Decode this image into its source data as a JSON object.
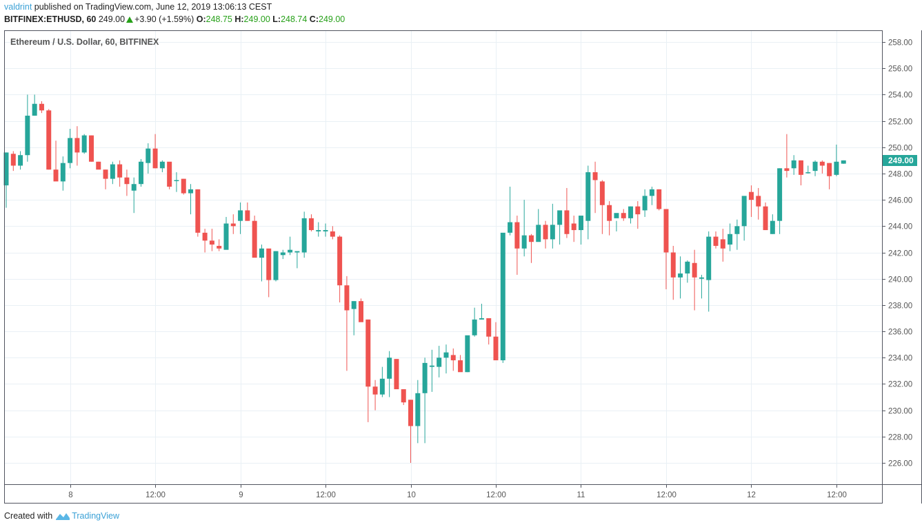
{
  "header": {
    "user": "valdrint",
    "published_text": "published on TradingView.com, June 12, 2019 13:06:13 CEST",
    "symbol": "BITFINEX:ETHUSD, 60",
    "last": "249.00",
    "change": "+3.90 (+1.59%)",
    "o_label": "O:",
    "o": "248.75",
    "h_label": "H:",
    "h": "249.00",
    "l_label": "L:",
    "l": "248.74",
    "c_label": "C:",
    "c": "249.00"
  },
  "footer": {
    "created_with": "Created with",
    "brand": "TradingView"
  },
  "colors": {
    "up": "#26a69a",
    "down": "#ef5350",
    "grid": "#e9f0f5",
    "axis": "#50535e",
    "price_label_bg": "#26a69a"
  },
  "chart_data": {
    "type": "candlestick",
    "title": "Ethereum / U.S. Dollar, 60, BITFINEX",
    "xlabel": "",
    "ylabel": "",
    "ylim": [
      224.6,
      259.0
    ],
    "y_ticks": [
      "258.00",
      "256.00",
      "254.00",
      "252.00",
      "250.00",
      "248.00",
      "246.00",
      "244.00",
      "242.00",
      "240.00",
      "238.00",
      "236.00",
      "234.00",
      "232.00",
      "230.00",
      "228.00",
      "226.00"
    ],
    "x_ticks": [
      {
        "label": "8",
        "index": 9
      },
      {
        "label": "12:00",
        "index": 21
      },
      {
        "label": "9",
        "index": 33
      },
      {
        "label": "12:00",
        "index": 45
      },
      {
        "label": "10",
        "index": 57
      },
      {
        "label": "12:00",
        "index": 69
      },
      {
        "label": "11",
        "index": 81
      },
      {
        "label": "12:00",
        "index": 93
      },
      {
        "label": "12",
        "index": 105
      },
      {
        "label": "12:00",
        "index": 117
      }
    ],
    "current_price_label": "249.00",
    "grid": true,
    "ohlc": [
      [
        247.1,
        249.6,
        245.4,
        249.6
      ],
      [
        249.5,
        249.7,
        248.2,
        248.6
      ],
      [
        248.6,
        249.7,
        248.3,
        249.4
      ],
      [
        249.4,
        254.0,
        248.9,
        252.4
      ],
      [
        252.4,
        254.0,
        252.4,
        253.3
      ],
      [
        253.3,
        253.5,
        252.6,
        252.8
      ],
      [
        252.8,
        252.9,
        248.3,
        248.3
      ],
      [
        248.3,
        250.5,
        247.5,
        247.4
      ],
      [
        247.4,
        249.3,
        246.7,
        248.8
      ],
      [
        248.8,
        251.4,
        248.4,
        250.7
      ],
      [
        250.7,
        251.6,
        248.6,
        249.6
      ],
      [
        249.6,
        251.0,
        249.5,
        250.9
      ],
      [
        250.9,
        250.9,
        248.9,
        248.9
      ],
      [
        248.9,
        248.9,
        248.4,
        248.3
      ],
      [
        248.3,
        248.3,
        246.8,
        247.6
      ],
      [
        247.6,
        248.9,
        247.2,
        248.7
      ],
      [
        248.7,
        249.0,
        247.0,
        247.7
      ],
      [
        247.7,
        248.3,
        246.3,
        247.2
      ],
      [
        246.7,
        247.7,
        245.0,
        247.2
      ],
      [
        247.2,
        249.1,
        247.0,
        248.9
      ],
      [
        248.8,
        250.3,
        248.0,
        249.9
      ],
      [
        249.9,
        251.0,
        248.4,
        248.4
      ],
      [
        248.4,
        249.0,
        248.1,
        248.9
      ],
      [
        248.9,
        248.7,
        246.8,
        247.0
      ],
      [
        247.5,
        248.1,
        246.6,
        247.5
      ],
      [
        247.6,
        247.6,
        246.4,
        246.5
      ],
      [
        246.5,
        247.2,
        244.9,
        246.8
      ],
      [
        246.8,
        246.8,
        243.2,
        243.5
      ],
      [
        243.5,
        243.8,
        242.0,
        242.9
      ],
      [
        242.9,
        243.8,
        242.1,
        242.6
      ],
      [
        242.5,
        243.0,
        242.1,
        242.3
      ],
      [
        242.2,
        244.7,
        242.4,
        244.2
      ],
      [
        244.2,
        244.9,
        243.4,
        244.0
      ],
      [
        244.4,
        245.8,
        243.4,
        245.2
      ],
      [
        245.2,
        245.8,
        244.4,
        244.4
      ],
      [
        244.4,
        244.8,
        241.8,
        241.6
      ],
      [
        241.6,
        242.6,
        239.8,
        242.3
      ],
      [
        242.3,
        242.1,
        238.6,
        239.9
      ],
      [
        239.9,
        242.1,
        239.8,
        242.1
      ],
      [
        241.8,
        242.2,
        241.5,
        242.0
      ],
      [
        242.0,
        243.2,
        241.8,
        242.2
      ],
      [
        242.0,
        242.0,
        240.8,
        242.1
      ],
      [
        242.0,
        245.1,
        241.6,
        244.6
      ],
      [
        244.6,
        244.9,
        243.6,
        243.7
      ],
      [
        243.6,
        244.3,
        243.2,
        243.7
      ],
      [
        243.6,
        244.2,
        243.2,
        243.7
      ],
      [
        243.6,
        244.0,
        243.0,
        243.2
      ],
      [
        243.2,
        243.3,
        238.2,
        239.5
      ],
      [
        239.5,
        240.2,
        233.0,
        237.6
      ],
      [
        237.7,
        238.3,
        235.7,
        238.3
      ],
      [
        238.3,
        238.5,
        236.8,
        236.7
      ],
      [
        236.9,
        236.9,
        229.1,
        231.8
      ],
      [
        231.8,
        232.3,
        230.0,
        231.2
      ],
      [
        231.2,
        233.3,
        231.0,
        232.4
      ],
      [
        232.4,
        234.5,
        231.0,
        234.0
      ],
      [
        233.9,
        233.9,
        232.2,
        231.6
      ],
      [
        231.6,
        231.6,
        230.4,
        230.6
      ],
      [
        230.8,
        230.8,
        226.0,
        228.8
      ],
      [
        228.8,
        232.3,
        227.5,
        231.3
      ],
      [
        231.3,
        234.0,
        227.5,
        233.6
      ],
      [
        233.3,
        234.6,
        231.4,
        233.4
      ],
      [
        233.3,
        234.9,
        232.5,
        234.0
      ],
      [
        234.0,
        235.0,
        232.8,
        234.4
      ],
      [
        234.2,
        234.7,
        233.0,
        233.8
      ],
      [
        233.8,
        234.2,
        233.0,
        232.9
      ],
      [
        232.9,
        235.6,
        232.9,
        235.7
      ],
      [
        235.7,
        237.8,
        235.6,
        236.9
      ],
      [
        236.9,
        238.1,
        236.9,
        237.0
      ],
      [
        237.0,
        237.0,
        235.0,
        235.6
      ],
      [
        235.6,
        236.7,
        235.0,
        233.8
      ],
      [
        233.8,
        236.0,
        233.6,
        243.5
      ],
      [
        243.5,
        247.0,
        243.3,
        244.3
      ],
      [
        244.3,
        244.8,
        240.3,
        242.3
      ],
      [
        242.3,
        246.0,
        241.7,
        243.3
      ],
      [
        243.3,
        243.4,
        241.2,
        242.8
      ],
      [
        242.8,
        245.3,
        242.9,
        244.1
      ],
      [
        244.1,
        244.4,
        242.3,
        243.0
      ],
      [
        243.0,
        245.7,
        242.3,
        244.1
      ],
      [
        244.1,
        244.8,
        242.6,
        245.2
      ],
      [
        245.2,
        246.9,
        243.1,
        243.4
      ],
      [
        244.2,
        244.8,
        242.8,
        243.7
      ],
      [
        243.7,
        244.0,
        242.6,
        244.8
      ],
      [
        244.4,
        248.6,
        243.0,
        248.1
      ],
      [
        248.1,
        248.9,
        245.0,
        247.5
      ],
      [
        247.4,
        247.5,
        243.4,
        245.6
      ],
      [
        245.6,
        245.9,
        243.3,
        244.4
      ],
      [
        244.6,
        244.4,
        243.6,
        245.0
      ],
      [
        245.0,
        245.3,
        244.4,
        244.6
      ],
      [
        244.6,
        245.5,
        244.2,
        245.5
      ],
      [
        245.5,
        245.9,
        243.8,
        244.9
      ],
      [
        245.2,
        246.8,
        244.7,
        246.3
      ],
      [
        246.3,
        247.0,
        245.6,
        246.8
      ],
      [
        246.8,
        246.8,
        245.2,
        245.3
      ],
      [
        245.3,
        245.3,
        239.2,
        242.0
      ],
      [
        242.0,
        242.5,
        238.4,
        240.1
      ],
      [
        240.1,
        241.7,
        238.5,
        240.4
      ],
      [
        240.4,
        241.4,
        239.7,
        241.3
      ],
      [
        241.2,
        242.2,
        237.6,
        240.1
      ],
      [
        240.0,
        240.3,
        238.5,
        240.1
      ],
      [
        239.9,
        243.6,
        237.5,
        243.2
      ],
      [
        243.2,
        243.6,
        242.3,
        242.5
      ],
      [
        243.0,
        243.8,
        241.3,
        242.3
      ],
      [
        242.6,
        244.2,
        242.1,
        243.4
      ],
      [
        243.4,
        244.5,
        242.2,
        244.0
      ],
      [
        244.0,
        245.7,
        242.9,
        246.3
      ],
      [
        246.6,
        247.1,
        244.7,
        246.0
      ],
      [
        246.3,
        246.9,
        244.5,
        245.5
      ],
      [
        245.5,
        245.8,
        243.7,
        243.7
      ],
      [
        243.4,
        244.9,
        243.4,
        244.4
      ],
      [
        244.4,
        248.4,
        243.4,
        248.4
      ],
      [
        248.4,
        251.0,
        247.7,
        248.2
      ],
      [
        248.4,
        249.4,
        247.9,
        249.0
      ],
      [
        249.0,
        249.0,
        247.1,
        247.9
      ],
      [
        248.1,
        248.6,
        248.0,
        248.1
      ],
      [
        248.2,
        249.0,
        247.8,
        248.9
      ],
      [
        248.9,
        249.0,
        248.0,
        248.6
      ],
      [
        248.8,
        248.8,
        246.8,
        247.8
      ],
      [
        247.9,
        250.2,
        247.8,
        248.9
      ],
      [
        248.75,
        249.0,
        248.74,
        249.0
      ]
    ]
  }
}
